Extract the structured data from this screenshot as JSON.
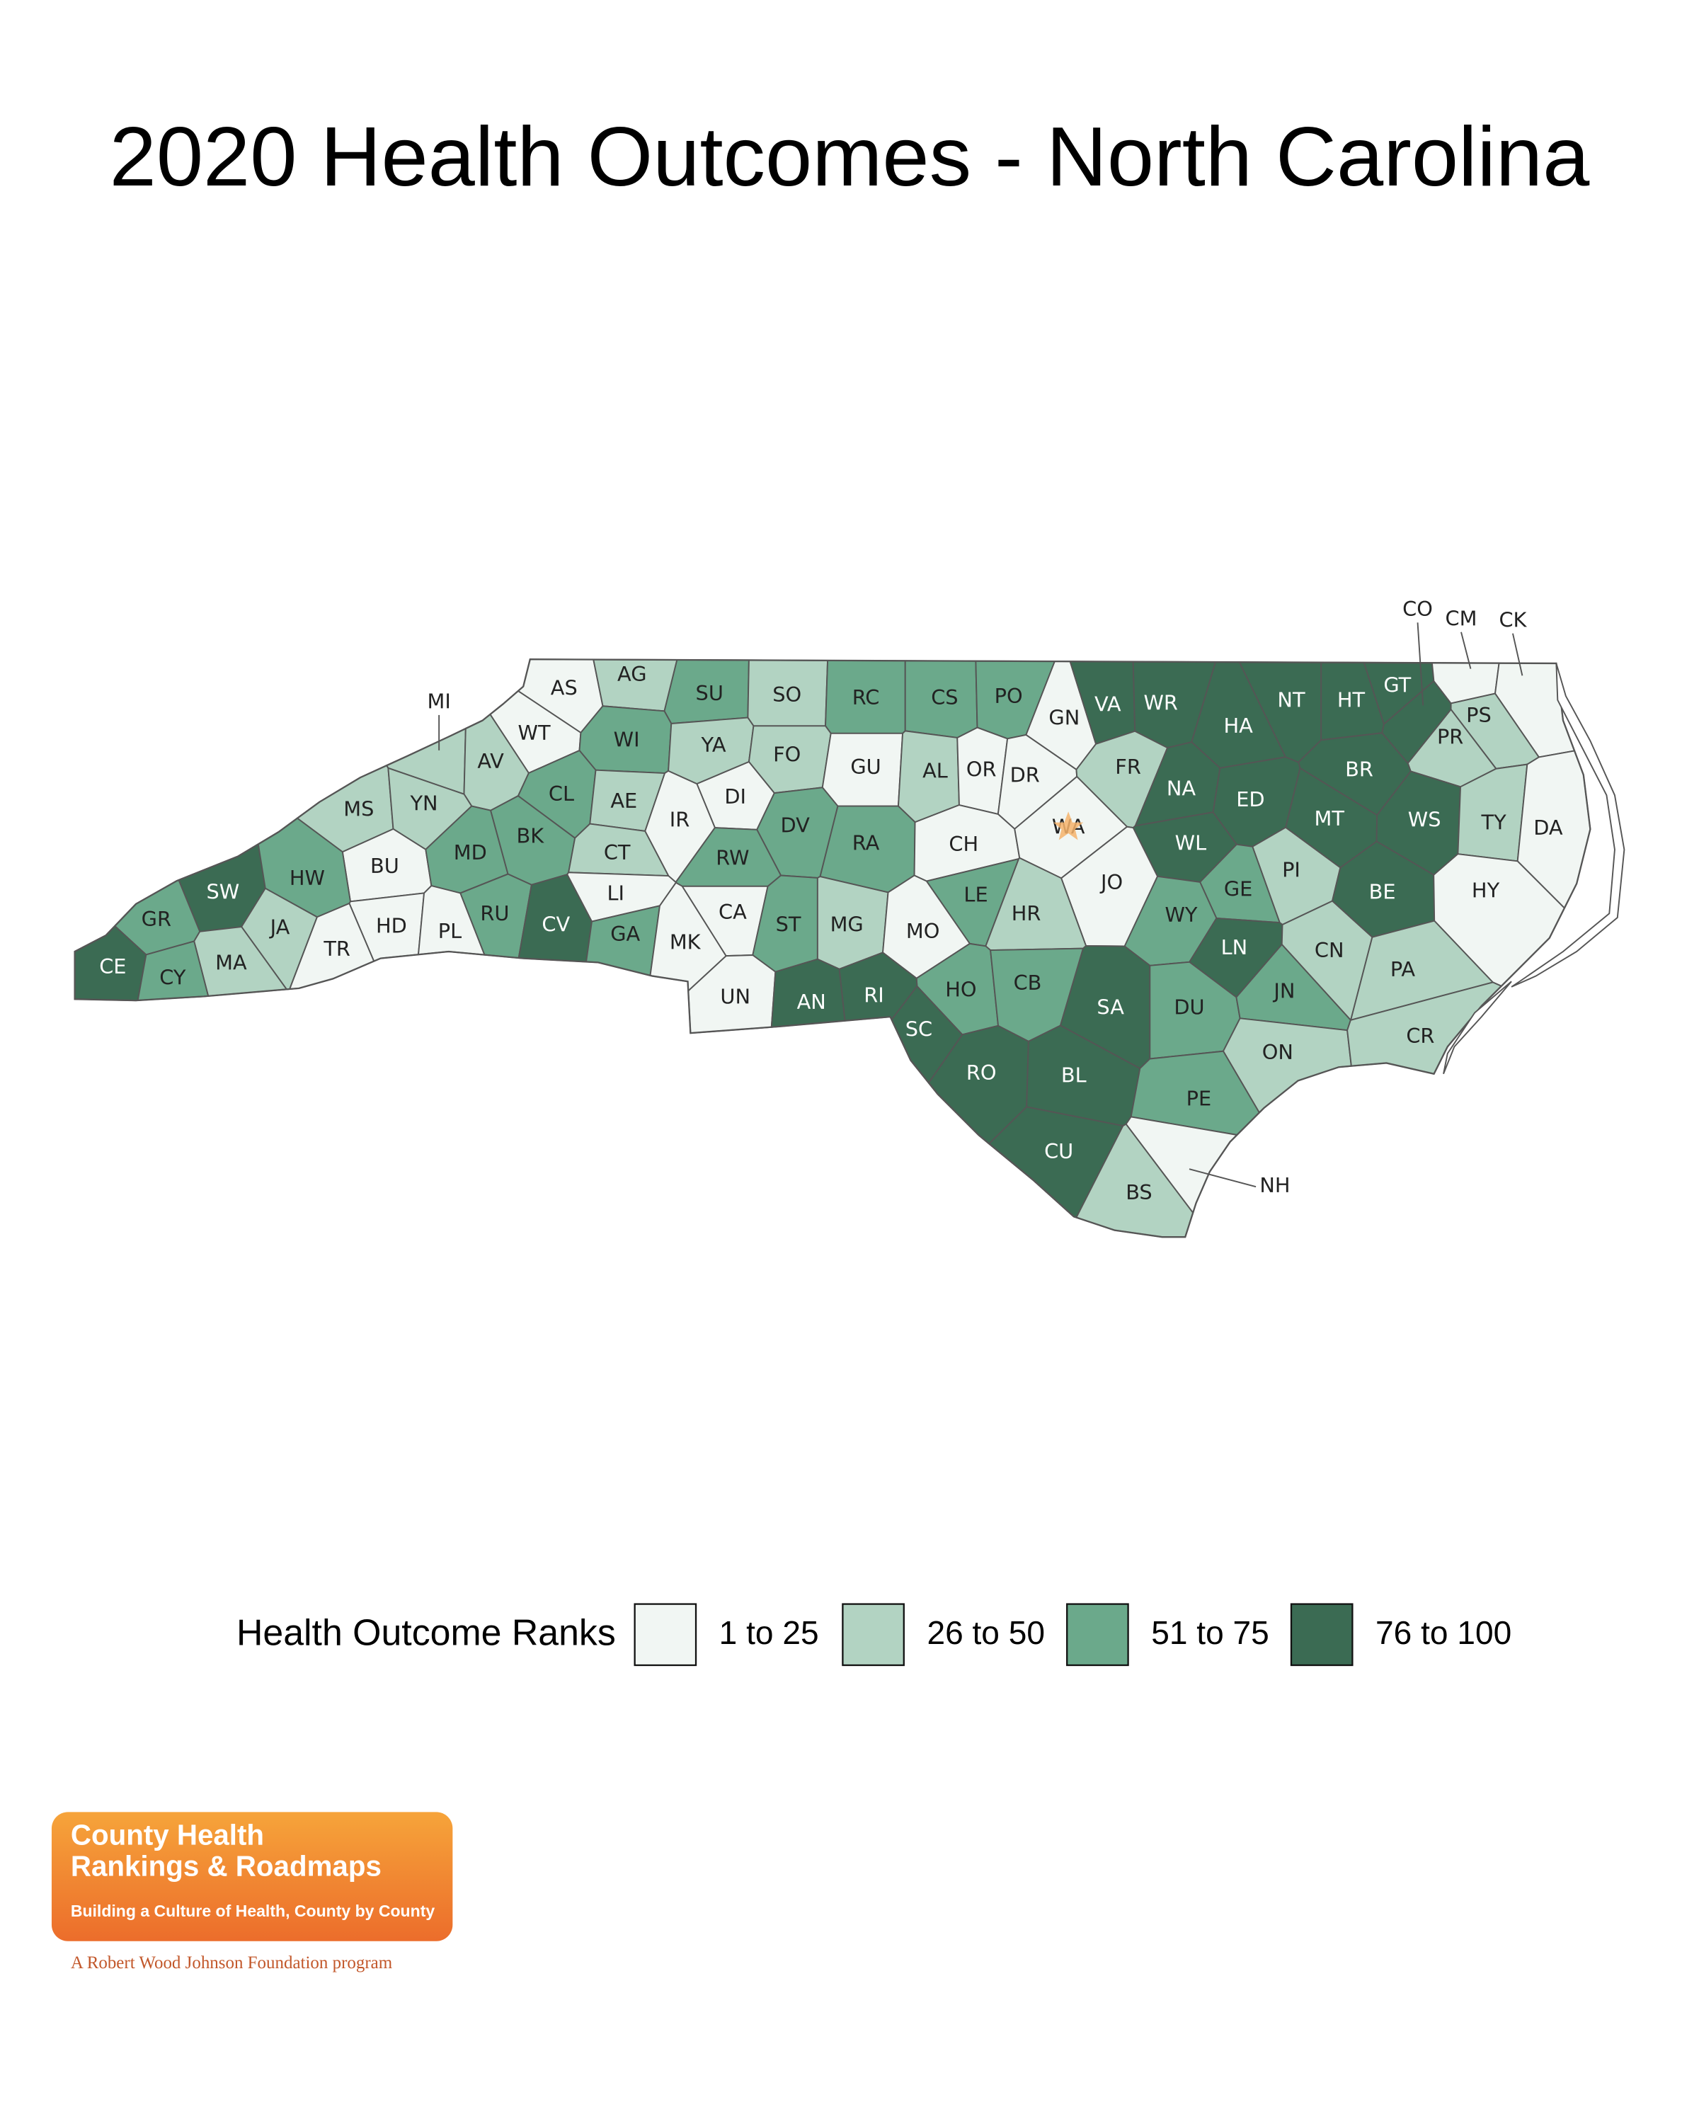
{
  "title": "2020 Health Outcomes - North Carolina",
  "legend": {
    "title": "Health Outcome Ranks",
    "items": [
      {
        "label": "1 to 25",
        "color": "#f1f6f3"
      },
      {
        "label": "26 to 50",
        "color": "#b2d3c2"
      },
      {
        "label": "51 to 75",
        "color": "#6ba98b"
      },
      {
        "label": "76 to 100",
        "color": "#3b6b53"
      }
    ]
  },
  "counties": [
    {
      "code": "AS",
      "group": 0
    },
    {
      "code": "AG",
      "group": 1
    },
    {
      "code": "SU",
      "group": 2
    },
    {
      "code": "SO",
      "group": 1
    },
    {
      "code": "RC",
      "group": 2
    },
    {
      "code": "CS",
      "group": 2
    },
    {
      "code": "PO",
      "group": 2
    },
    {
      "code": "GN",
      "group": 0
    },
    {
      "code": "VA",
      "group": 3
    },
    {
      "code": "WR",
      "group": 3
    },
    {
      "code": "NT",
      "group": 3
    },
    {
      "code": "HT",
      "group": 3
    },
    {
      "code": "GT",
      "group": 3
    },
    {
      "code": "CO",
      "group": 3
    },
    {
      "code": "CM",
      "group": 0
    },
    {
      "code": "CK",
      "group": 0
    },
    {
      "code": "PS",
      "group": 1
    },
    {
      "code": "PR",
      "group": 1
    },
    {
      "code": "MI",
      "group": 1
    },
    {
      "code": "WT",
      "group": 0
    },
    {
      "code": "AV",
      "group": 1
    },
    {
      "code": "WI",
      "group": 2
    },
    {
      "code": "YA",
      "group": 1
    },
    {
      "code": "FO",
      "group": 1
    },
    {
      "code": "GU",
      "group": 0
    },
    {
      "code": "AL",
      "group": 1
    },
    {
      "code": "OR",
      "group": 0
    },
    {
      "code": "DR",
      "group": 0
    },
    {
      "code": "FR",
      "group": 1
    },
    {
      "code": "HA",
      "group": 3
    },
    {
      "code": "BR",
      "group": 3
    },
    {
      "code": "MS",
      "group": 1
    },
    {
      "code": "YN",
      "group": 1
    },
    {
      "code": "CL",
      "group": 2
    },
    {
      "code": "AE",
      "group": 1
    },
    {
      "code": "DI",
      "group": 0
    },
    {
      "code": "IR",
      "group": 0
    },
    {
      "code": "DV",
      "group": 2
    },
    {
      "code": "RA",
      "group": 2
    },
    {
      "code": "CH",
      "group": 0
    },
    {
      "code": "WA",
      "group": 0
    },
    {
      "code": "NA",
      "group": 3
    },
    {
      "code": "ED",
      "group": 3
    },
    {
      "code": "MT",
      "group": 3
    },
    {
      "code": "WS",
      "group": 3
    },
    {
      "code": "TY",
      "group": 1
    },
    {
      "code": "DA",
      "group": 0
    },
    {
      "code": "BU",
      "group": 0
    },
    {
      "code": "MD",
      "group": 2
    },
    {
      "code": "BK",
      "group": 2
    },
    {
      "code": "CT",
      "group": 1
    },
    {
      "code": "RW",
      "group": 2
    },
    {
      "code": "WL",
      "group": 3
    },
    {
      "code": "PI",
      "group": 1
    },
    {
      "code": "BE",
      "group": 3
    },
    {
      "code": "HY",
      "group": 0
    },
    {
      "code": "JO",
      "group": 0
    },
    {
      "code": "SW",
      "group": 3
    },
    {
      "code": "HW",
      "group": 2
    },
    {
      "code": "LI",
      "group": 0
    },
    {
      "code": "GE",
      "group": 2
    },
    {
      "code": "LE",
      "group": 2
    },
    {
      "code": "HR",
      "group": 1
    },
    {
      "code": "WY",
      "group": 2
    },
    {
      "code": "GR",
      "group": 2
    },
    {
      "code": "JA",
      "group": 1
    },
    {
      "code": "HD",
      "group": 0
    },
    {
      "code": "PL",
      "group": 0
    },
    {
      "code": "RU",
      "group": 2
    },
    {
      "code": "CV",
      "group": 3
    },
    {
      "code": "GA",
      "group": 2
    },
    {
      "code": "MK",
      "group": 0
    },
    {
      "code": "CA",
      "group": 0
    },
    {
      "code": "ST",
      "group": 2
    },
    {
      "code": "MG",
      "group": 1
    },
    {
      "code": "MO",
      "group": 0
    },
    {
      "code": "LN",
      "group": 3
    },
    {
      "code": "CN",
      "group": 1
    },
    {
      "code": "TR",
      "group": 0
    },
    {
      "code": "MA",
      "group": 1
    },
    {
      "code": "CE",
      "group": 3
    },
    {
      "code": "CY",
      "group": 2
    },
    {
      "code": "PA",
      "group": 1
    },
    {
      "code": "HO",
      "group": 2
    },
    {
      "code": "CB",
      "group": 2
    },
    {
      "code": "SA",
      "group": 3
    },
    {
      "code": "DU",
      "group": 2
    },
    {
      "code": "JN",
      "group": 2
    },
    {
      "code": "UN",
      "group": 0
    },
    {
      "code": "AN",
      "group": 3
    },
    {
      "code": "RI",
      "group": 3
    },
    {
      "code": "SC",
      "group": 3
    },
    {
      "code": "ON",
      "group": 1
    },
    {
      "code": "CR",
      "group": 1
    },
    {
      "code": "RO",
      "group": 3
    },
    {
      "code": "BL",
      "group": 3
    },
    {
      "code": "PE",
      "group": 2
    },
    {
      "code": "CU",
      "group": 3
    },
    {
      "code": "BS",
      "group": 1
    },
    {
      "code": "NH",
      "group": 0
    }
  ],
  "logo": {
    "line1": "County Health",
    "line2": "Rankings & Roadmaps",
    "tagline": "Building a Culture of Health, County by County",
    "sponsor": "A Robert Wood Johnson Foundation program"
  }
}
